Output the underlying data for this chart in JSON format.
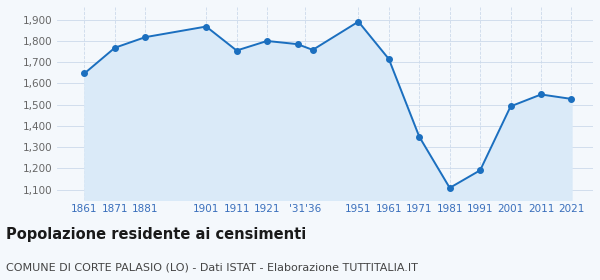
{
  "years": [
    1861,
    1871,
    1881,
    1901,
    1911,
    1921,
    1931,
    1936,
    1951,
    1961,
    1971,
    1981,
    1991,
    2001,
    2011,
    2021
  ],
  "population": [
    1647,
    1768,
    1818,
    1868,
    1755,
    1800,
    1785,
    1758,
    1891,
    1715,
    1349,
    1108,
    1191,
    1492,
    1548,
    1527
  ],
  "xtick_positions": [
    1861,
    1871,
    1881,
    1901,
    1911,
    1921,
    1933.5,
    1951,
    1961,
    1971,
    1981,
    1991,
    2001,
    2011,
    2021
  ],
  "xtick_labels": [
    "1861",
    "1871",
    "1881",
    "1901",
    "1911",
    "1921",
    "'31'36",
    "1951",
    "1961",
    "1971",
    "1981",
    "1991",
    "2001",
    "2011",
    "2021"
  ],
  "ytick_values": [
    1100,
    1200,
    1300,
    1400,
    1500,
    1600,
    1700,
    1800,
    1900
  ],
  "ylim": [
    1050,
    1960
  ],
  "xlim": [
    1852,
    2028
  ],
  "line_color": "#1b6fbf",
  "fill_color": "#daeaf8",
  "marker_color": "#1b6fbf",
  "bg_color": "#f4f8fc",
  "grid_color": "#ccdaeb",
  "title": "Popolazione residente ai censimenti",
  "subtitle": "COMUNE DI CORTE PALASIO (LO) - Dati ISTAT - Elaborazione TUTTITALIA.IT",
  "title_fontsize": 10.5,
  "subtitle_fontsize": 8,
  "tick_label_color": "#3a6fbc",
  "ytick_label_color": "#666666",
  "tick_fontsize": 7.5,
  "line_width": 1.4,
  "marker_size": 16
}
